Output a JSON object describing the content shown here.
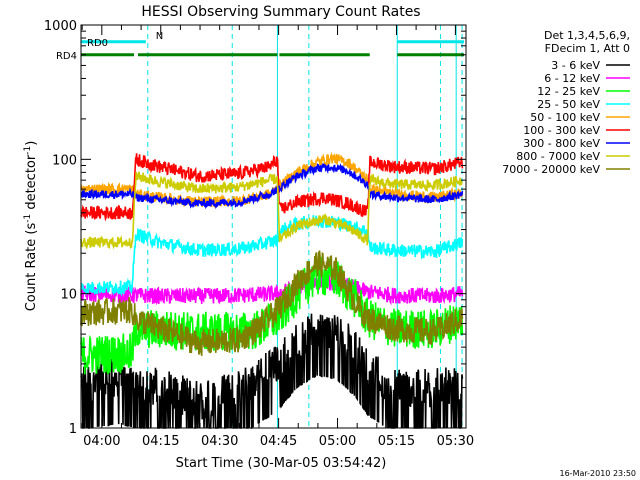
{
  "chart_data": {
    "type": "line",
    "title": "HESSI Observing Summary Count Rates",
    "xlabel": "Start Time (30-Mar-05 03:54:42)",
    "ylabel_main": "Count Rate (s",
    "ylabel_sup1": "-1",
    "ylabel_mid": " detector",
    "ylabel_sup2": "-1",
    "ylabel_end": ")",
    "x_range_min": [
      0,
      98
    ],
    "yscale": "log",
    "ylim": [
      1,
      1000
    ],
    "x_ticks": [
      {
        "label": "04:00",
        "min": 5.3
      },
      {
        "label": "04:15",
        "min": 20.3
      },
      {
        "label": "04:30",
        "min": 35.3
      },
      {
        "label": "04:45",
        "min": 50.3
      },
      {
        "label": "05:00",
        "min": 65.3
      },
      {
        "label": "05:15",
        "min": 80.3
      },
      {
        "label": "05:30",
        "min": 95.3
      }
    ],
    "y_ticks": [
      {
        "label": "1",
        "value": 1
      },
      {
        "label": "10",
        "value": 10
      },
      {
        "label": "100",
        "value": 100
      },
      {
        "label": "1000",
        "value": 1000
      }
    ],
    "legend": {
      "header1": "Det 1,3,4,5,6,9,",
      "header2": "FDecim 1, Att 0",
      "placement": "right"
    },
    "night_lines_min": [
      0.0,
      50.0,
      80.5,
      95.5
    ],
    "saa_lines_min": [
      17.0,
      38.5,
      58.0,
      91.5,
      97.0
    ],
    "flags": [
      {
        "name": "RD0",
        "color": "#00e5e5",
        "segments": [
          [
            0,
            16.5
          ],
          [
            80.5,
            97.5
          ]
        ],
        "level": 750,
        "labels": [
          "RD0",
          "N"
        ]
      },
      {
        "name": "RD4",
        "color": "#008000",
        "segments": [
          [
            0,
            13.5
          ],
          [
            14.5,
            50.0
          ],
          [
            50.5,
            73.5
          ],
          [
            80.5,
            97.5
          ]
        ],
        "level": 600,
        "labels": [
          "RD4"
        ]
      }
    ],
    "series": [
      {
        "name": "3 - 6 keV",
        "color": "#000000",
        "noise": 0.9,
        "points": [
          [
            0,
            2.2
          ],
          [
            10,
            2.4
          ],
          [
            20,
            2.0
          ],
          [
            30,
            1.6
          ],
          [
            40,
            1.9
          ],
          [
            45,
            2.4
          ],
          [
            50,
            3.0
          ],
          [
            55,
            4.5
          ],
          [
            60,
            5.5
          ],
          [
            65,
            5.2
          ],
          [
            70,
            3.8
          ],
          [
            73,
            2.8
          ],
          [
            80,
            2.0
          ],
          [
            90,
            2.0
          ],
          [
            97,
            2.0
          ]
        ]
      },
      {
        "name": "6 - 12 keV",
        "color": "#ff00ff",
        "noise": 0.06,
        "points": [
          [
            0,
            10
          ],
          [
            10,
            9.8
          ],
          [
            20,
            9.6
          ],
          [
            30,
            9.6
          ],
          [
            40,
            9.7
          ],
          [
            50,
            10
          ],
          [
            55,
            11
          ],
          [
            60,
            12.3
          ],
          [
            65,
            12
          ],
          [
            70,
            11
          ],
          [
            73,
            10.3
          ],
          [
            80,
            9.7
          ],
          [
            90,
            9.6
          ],
          [
            97,
            10
          ]
        ]
      },
      {
        "name": "12 - 25 keV",
        "color": "#00ff00",
        "noise": 0.15,
        "points": [
          [
            0,
            3.5
          ],
          [
            13,
            3.6
          ],
          [
            14,
            5.5
          ],
          [
            20,
            5.4
          ],
          [
            30,
            5.2
          ],
          [
            40,
            5.2
          ],
          [
            45,
            5.4
          ],
          [
            50,
            6.5
          ],
          [
            55,
            10
          ],
          [
            60,
            13.5
          ],
          [
            65,
            13
          ],
          [
            70,
            9
          ],
          [
            73,
            6.5
          ],
          [
            80,
            5.5
          ],
          [
            90,
            5.4
          ],
          [
            97,
            6.5
          ]
        ]
      },
      {
        "name": "25 - 50 keV",
        "color": "#00ffff",
        "noise": 0.05,
        "points": [
          [
            0,
            11
          ],
          [
            13,
            11.2
          ],
          [
            14,
            28
          ],
          [
            20,
            24
          ],
          [
            30,
            21
          ],
          [
            40,
            21.5
          ],
          [
            45,
            23
          ],
          [
            50,
            25
          ],
          [
            50.5,
            29
          ],
          [
            55,
            33
          ],
          [
            60,
            35
          ],
          [
            65,
            34
          ],
          [
            70,
            31
          ],
          [
            73,
            29
          ],
          [
            73.5,
            22
          ],
          [
            80,
            21
          ],
          [
            90,
            20.5
          ],
          [
            97,
            24
          ]
        ]
      },
      {
        "name": "50 - 100 keV",
        "color": "#ffa500",
        "noise": 0.04,
        "points": [
          [
            0,
            60
          ],
          [
            13,
            60
          ],
          [
            14,
            55
          ],
          [
            20,
            52
          ],
          [
            30,
            48
          ],
          [
            40,
            49
          ],
          [
            48,
            55
          ],
          [
            55,
            80
          ],
          [
            60,
            95
          ],
          [
            64,
            102
          ],
          [
            68,
            95
          ],
          [
            73,
            70
          ],
          [
            73.5,
            60
          ],
          [
            80,
            55
          ],
          [
            90,
            52
          ],
          [
            97,
            56
          ]
        ]
      },
      {
        "name": "100 - 300 keV",
        "color": "#ff0000",
        "noise": 0.05,
        "points": [
          [
            0,
            40
          ],
          [
            13,
            40
          ],
          [
            14,
            100
          ],
          [
            20,
            88
          ],
          [
            30,
            75
          ],
          [
            40,
            78
          ],
          [
            48,
            88
          ],
          [
            50,
            100
          ],
          [
            50.5,
            42
          ],
          [
            55,
            48
          ],
          [
            62,
            52
          ],
          [
            68,
            47
          ],
          [
            73,
            40
          ],
          [
            73.5,
            95
          ],
          [
            80,
            88
          ],
          [
            90,
            85
          ],
          [
            97,
            95
          ]
        ]
      },
      {
        "name": "300 - 800 keV",
        "color": "#0000ff",
        "noise": 0.03,
        "points": [
          [
            0,
            55
          ],
          [
            13,
            55
          ],
          [
            14,
            52
          ],
          [
            20,
            50
          ],
          [
            30,
            47
          ],
          [
            40,
            48
          ],
          [
            48,
            55
          ],
          [
            55,
            75
          ],
          [
            60,
            86
          ],
          [
            64,
            88
          ],
          [
            68,
            82
          ],
          [
            73,
            65
          ],
          [
            73.5,
            55
          ],
          [
            80,
            52
          ],
          [
            90,
            50
          ],
          [
            97,
            55
          ]
        ]
      },
      {
        "name": "800 - 7000 keV",
        "color": "#cccc00",
        "noise": 0.04,
        "points": [
          [
            0,
            24
          ],
          [
            13,
            24
          ],
          [
            14,
            75
          ],
          [
            20,
            68
          ],
          [
            30,
            60
          ],
          [
            40,
            62
          ],
          [
            48,
            70
          ],
          [
            50,
            72
          ],
          [
            50.5,
            25
          ],
          [
            55,
            32
          ],
          [
            62,
            36
          ],
          [
            68,
            31
          ],
          [
            73,
            25
          ],
          [
            73.5,
            70
          ],
          [
            80,
            65
          ],
          [
            90,
            64
          ],
          [
            97,
            70
          ]
        ]
      },
      {
        "name": "7000 - 20000 keV",
        "color": "#808000",
        "noise": 0.1,
        "points": [
          [
            0,
            7.2
          ],
          [
            13,
            7.5
          ],
          [
            14,
            6.5
          ],
          [
            20,
            5.5
          ],
          [
            30,
            4.3
          ],
          [
            40,
            4.5
          ],
          [
            45,
            5.5
          ],
          [
            50,
            7.5
          ],
          [
            55,
            12
          ],
          [
            60,
            17
          ],
          [
            65,
            15
          ],
          [
            70,
            8.5
          ],
          [
            73,
            6.5
          ],
          [
            80,
            5.5
          ],
          [
            90,
            5.2
          ],
          [
            97,
            6.5
          ]
        ]
      }
    ]
  },
  "timestamp": "16-Mar-2010 23:50"
}
